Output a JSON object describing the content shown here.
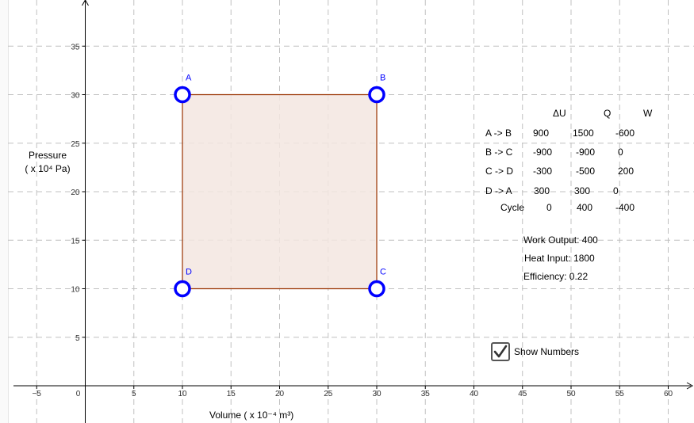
{
  "graph": {
    "x_axis": {
      "label": "Volume ( x 10⁻⁴ m³)",
      "min": -7.5,
      "max": 63,
      "step": 5,
      "ticks": [
        "−5",
        "0",
        "5",
        "10",
        "15",
        "20",
        "25",
        "30",
        "35",
        "40",
        "45",
        "50",
        "55",
        "60"
      ]
    },
    "y_axis": {
      "label_line1": "Pressure",
      "label_line2": "( x 10⁴ Pa)",
      "min": 0,
      "max": 39.5,
      "step": 5,
      "ticks": [
        "5",
        "10",
        "15",
        "20",
        "25",
        "30",
        "35"
      ]
    },
    "grid": true,
    "colors": {
      "point": "#0000ff",
      "polygon_stroke": "#993300",
      "polygon_fill": "#f3e6e1",
      "grid": "#c0c0c0"
    },
    "points": [
      {
        "name": "A",
        "x": 10,
        "y": 30
      },
      {
        "name": "B",
        "x": 30,
        "y": 30
      },
      {
        "name": "C",
        "x": 30,
        "y": 10
      },
      {
        "name": "D",
        "x": 10,
        "y": 10
      }
    ]
  },
  "table": {
    "headers": [
      "ΔU",
      "Q",
      "W"
    ],
    "rows": [
      {
        "label": "A -> B",
        "values": [
          "900",
          "1500",
          "-600"
        ]
      },
      {
        "label": "B -> C",
        "values": [
          "-900",
          "-900",
          "0"
        ]
      },
      {
        "label": "C -> D",
        "values": [
          "-300",
          "-500",
          "200"
        ]
      },
      {
        "label": "D -> A",
        "values": [
          "300",
          "300",
          "0"
        ]
      },
      {
        "label": "Cycle",
        "values": [
          "0",
          "400",
          "-400"
        ]
      }
    ]
  },
  "summary": {
    "work_output": "Work Output: 400",
    "heat_input": "Heat Input: 1800",
    "efficiency": "Efficiency: 0.22"
  },
  "checkbox": {
    "label": "Show Numbers",
    "checked": true
  }
}
